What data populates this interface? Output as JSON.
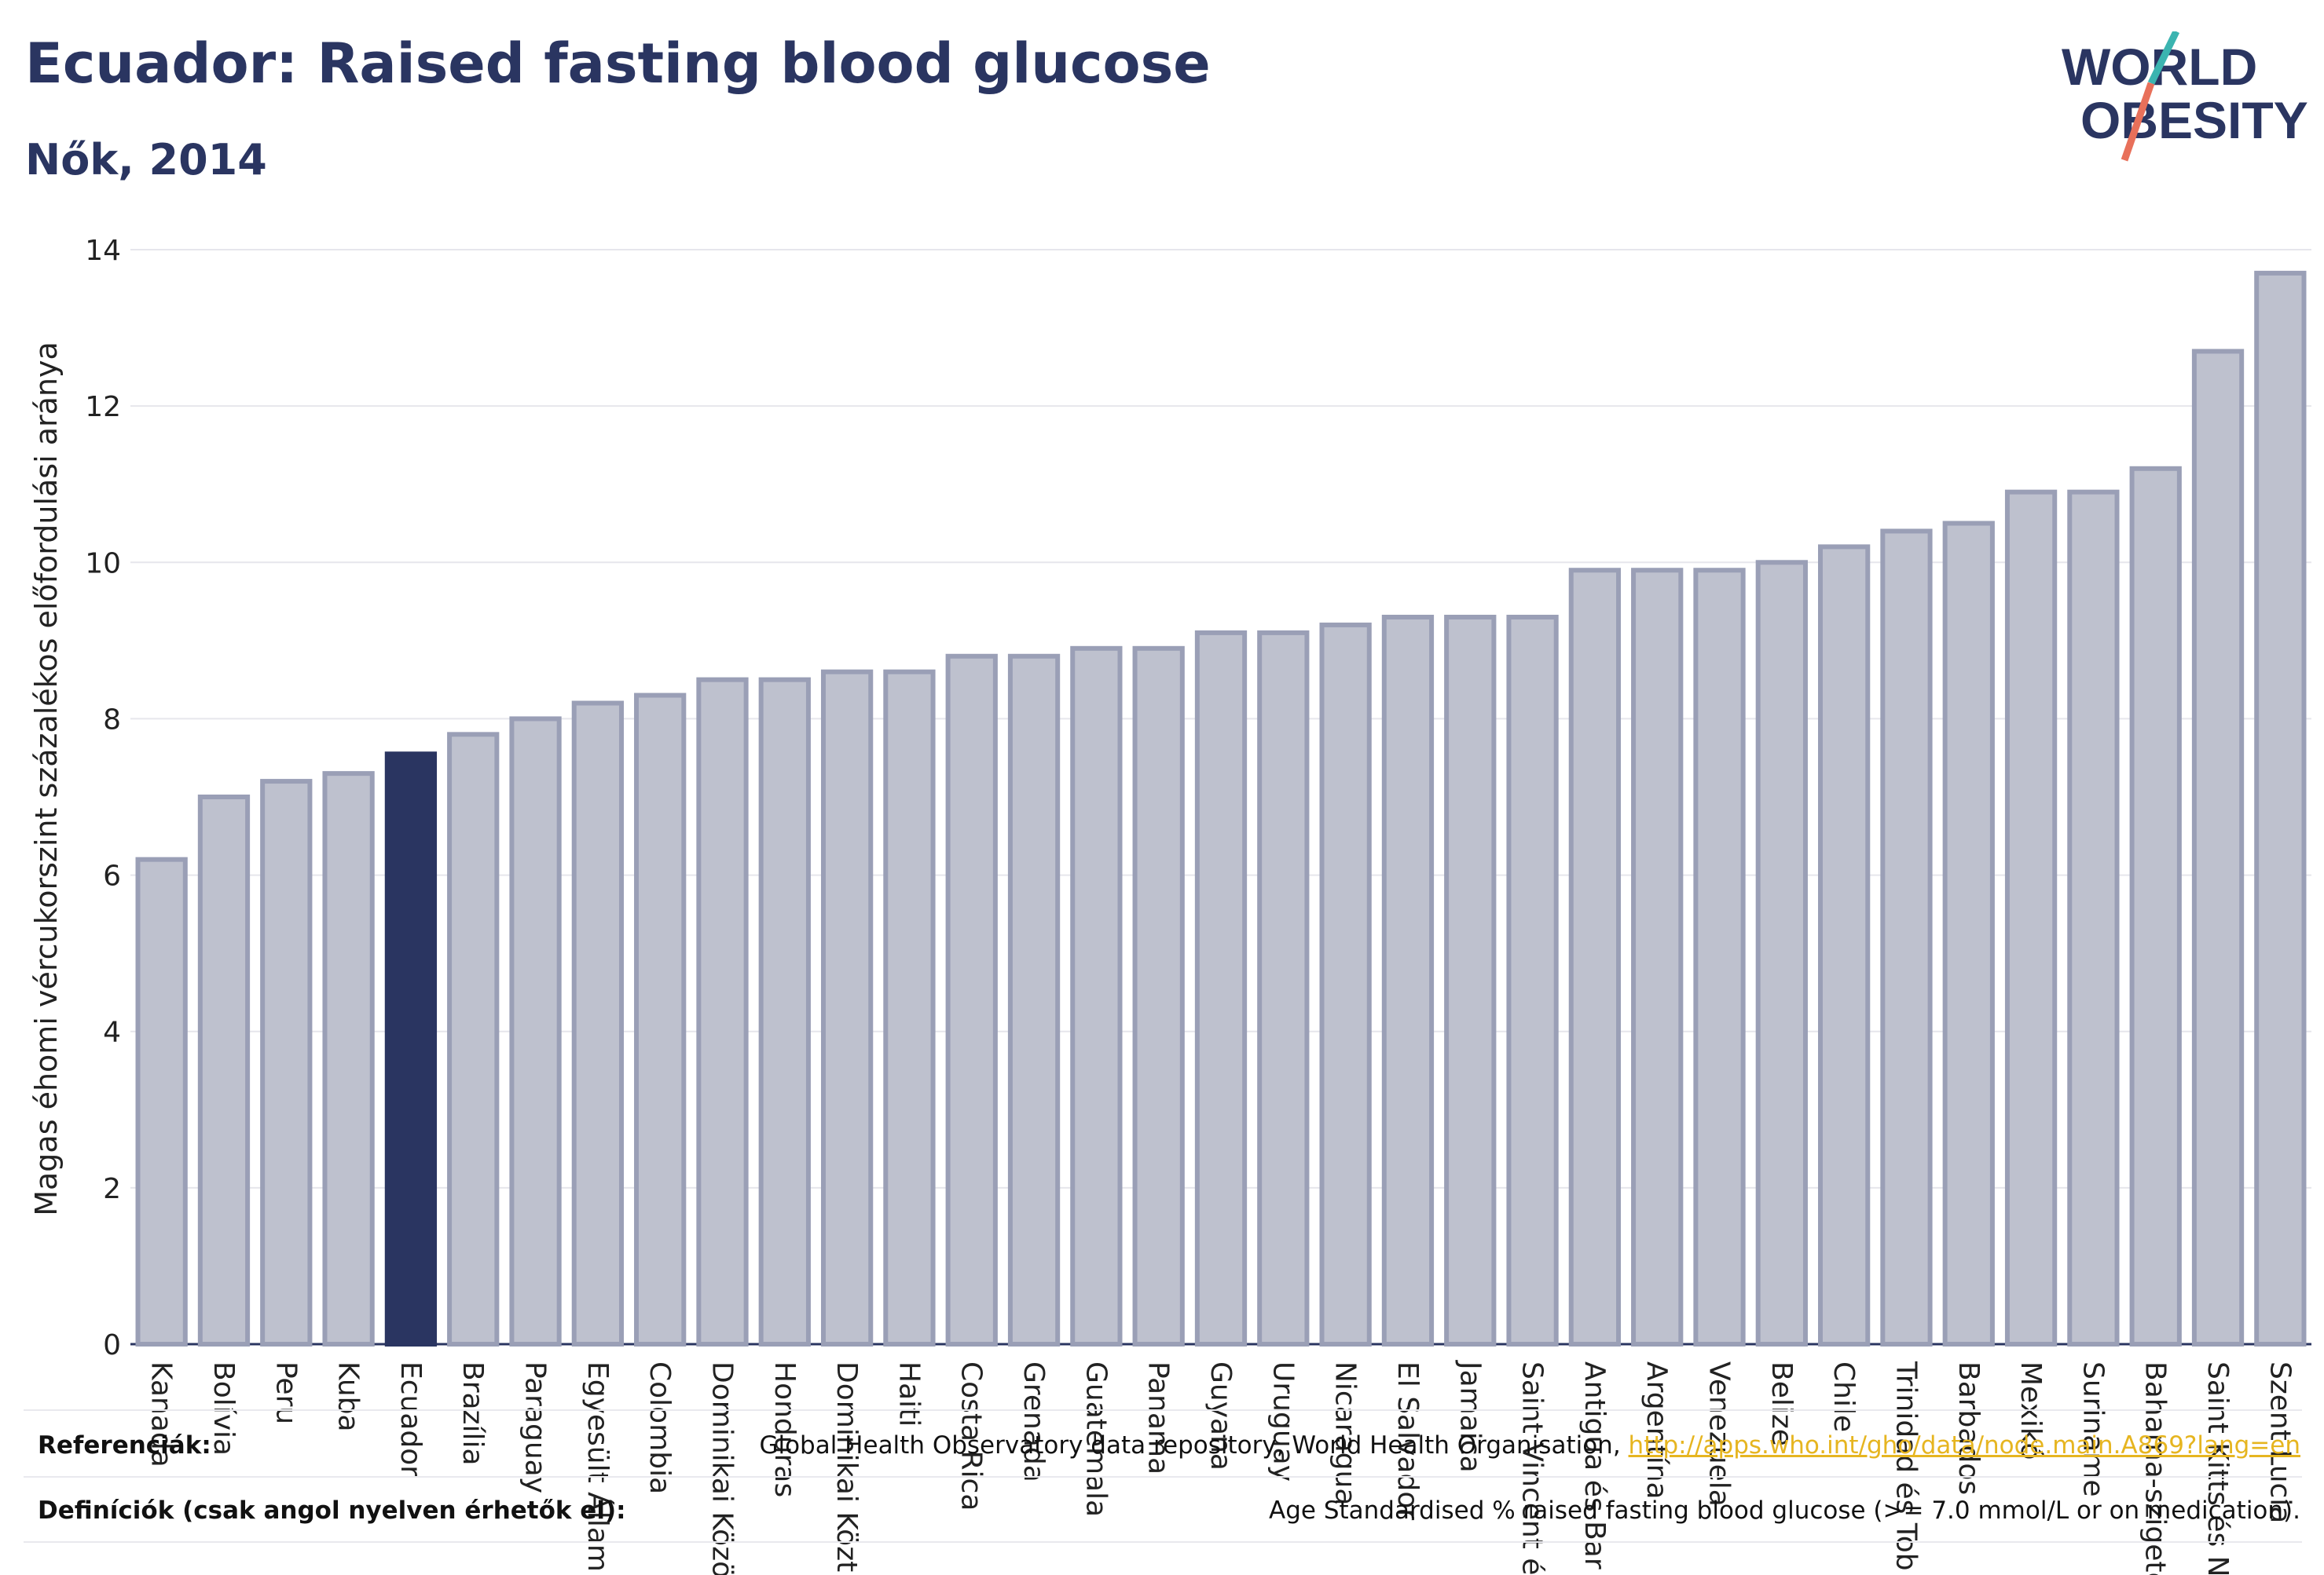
{
  "header": {
    "title": "Ecuador: Raised fasting blood glucose",
    "subtitle": "Nők, 2014",
    "logo_line1": "WORLD",
    "logo_line2": "OBESITY"
  },
  "colors": {
    "title": "#2a3561",
    "bar": "#bec1ce",
    "bar_stroke": "#9a9fb6",
    "highlight": "#2a3561",
    "grid": "#e6e6ec",
    "link": "#e6b520",
    "logo_teal": "#3bb4b0",
    "logo_coral": "#e8705a"
  },
  "chart_data": {
    "type": "bar",
    "ylabel": "Magas éhomi vércukorszint százalékos előfordulási aránya",
    "ylim": [
      0,
      14
    ],
    "yticks": [
      0,
      2,
      4,
      6,
      8,
      10,
      12,
      14
    ],
    "highlight": "Ecuador",
    "grid": true,
    "categories": [
      "Kanada",
      "Bolívia",
      "Peru",
      "Kuba",
      "Ecuador",
      "Brazília",
      "Paraguay",
      "Egyesült Állam",
      "Colombia",
      "Dominikai Közö",
      "Honduras",
      "Dominikai Közt",
      "Haiti",
      "Costa Rica",
      "Grenada",
      "Guatemala",
      "Panama",
      "Guyana",
      "Uruguay",
      "Nicaragua",
      "El Salvador",
      "Jamaica",
      "Saint Vincent é",
      "Antigua és Bar",
      "Argentína",
      "Venezuela",
      "Belize",
      "Chile",
      "Trinidad és Tob",
      "Barbados",
      "Mexikó",
      "Suriname",
      "Bahama-szigete",
      "Saint Kitts és N",
      "Szent Lucia"
    ],
    "values": [
      6.2,
      7.0,
      7.2,
      7.3,
      7.55,
      7.8,
      8.0,
      8.2,
      8.3,
      8.5,
      8.5,
      8.6,
      8.6,
      8.8,
      8.8,
      8.9,
      8.9,
      9.1,
      9.1,
      9.2,
      9.3,
      9.3,
      9.3,
      9.9,
      9.9,
      9.9,
      10.0,
      10.2,
      10.4,
      10.5,
      10.9,
      10.9,
      11.2,
      12.7,
      13.7
    ]
  },
  "footer": {
    "references_label": "Referenciák:",
    "references_text": "Global Health Observatory data repository, World Health Organisation, ",
    "references_link": "http://apps.who.int/gho/data/node.main.A869?lang=en",
    "definitions_label": "Definíciók (csak angol nyelven érhetők el):",
    "definitions_text": "Age Standardised % raised fasting blood glucose (>= 7.0 mmol/L or on medication)."
  }
}
